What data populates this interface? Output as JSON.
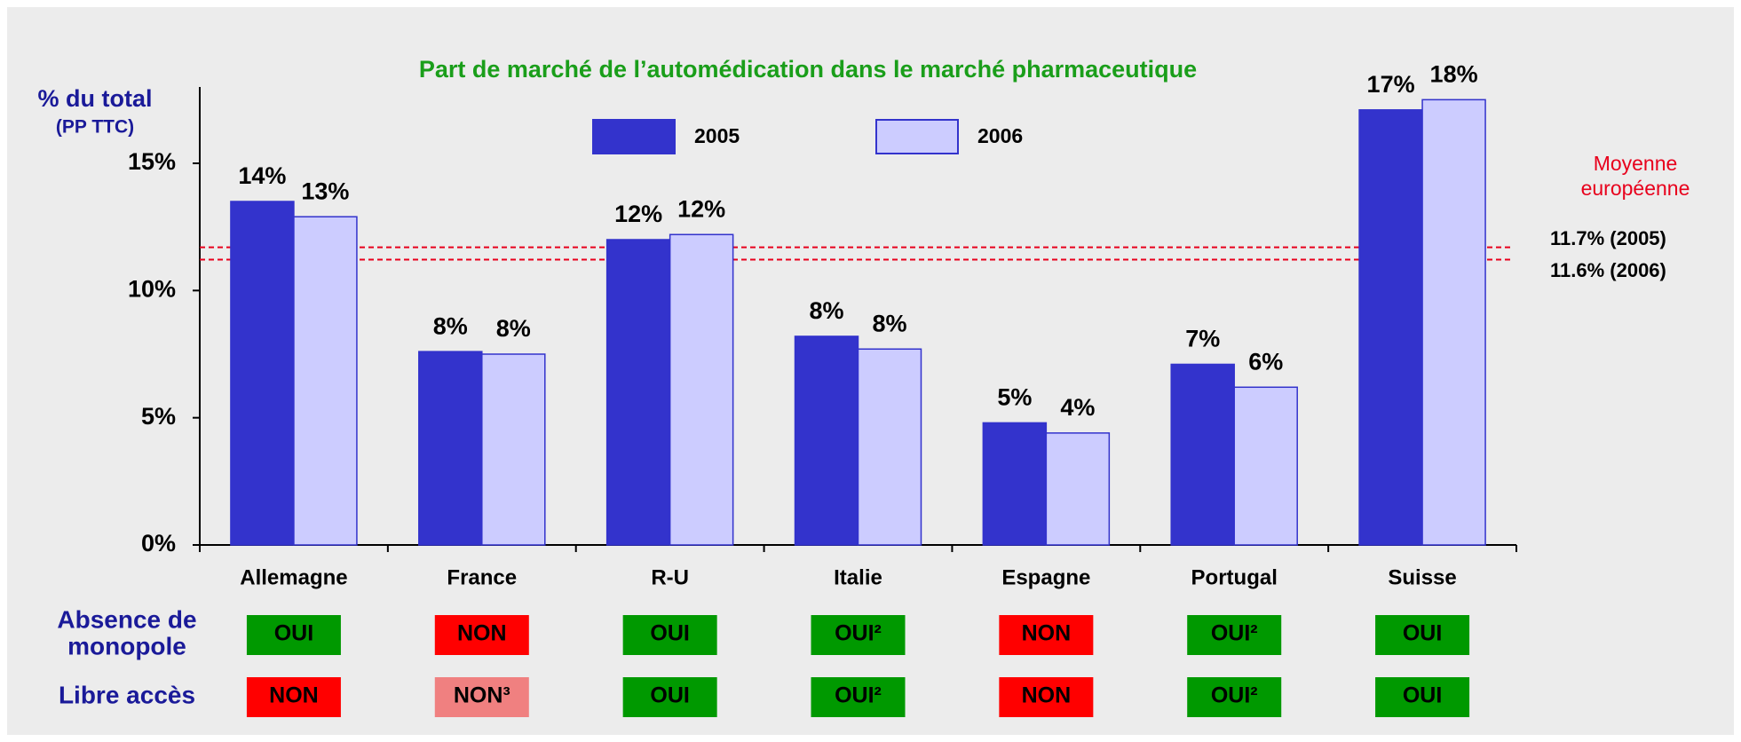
{
  "chart_data": {
    "type": "bar",
    "title": "Part de marché de l’automédication dans le marché pharmaceutique",
    "y_label": [
      "% du total",
      "(PP TTC)"
    ],
    "categories": [
      "Allemagne",
      "France",
      "R-U",
      "Italie",
      "Espagne",
      "Portugal",
      "Suisse"
    ],
    "series": [
      {
        "name": "2005",
        "color": "#3333cc",
        "values": [
          13.5,
          7.6,
          12.0,
          8.2,
          4.8,
          7.1,
          17.1
        ],
        "value_labels": [
          "14%",
          "8%",
          "12%",
          "8%",
          "5%",
          "7%",
          "17%"
        ]
      },
      {
        "name": "2006",
        "color": "#ccccff",
        "values": [
          12.9,
          7.5,
          12.2,
          7.7,
          4.4,
          6.2,
          17.5
        ],
        "value_labels": [
          "13%",
          "8%",
          "12%",
          "8%",
          "4%",
          "6%",
          "18%"
        ]
      }
    ],
    "ylim": [
      0,
      18
    ],
    "yticks": [
      {
        "value": 0,
        "label": "0%"
      },
      {
        "value": 5,
        "label": "5%"
      },
      {
        "value": 10,
        "label": "10%"
      },
      {
        "value": 15,
        "label": "15%"
      }
    ],
    "reference_title": [
      "Moyenne",
      "européenne"
    ],
    "reference_lines": [
      {
        "value": 11.7,
        "label": "11.7% (2005)"
      },
      {
        "value": 11.6,
        "label": "11.6% (2006)"
      }
    ],
    "reference_color": "#e8001c",
    "table": {
      "row_labels": [
        [
          "Absence de",
          "monopole"
        ],
        [
          "Libre accès"
        ]
      ],
      "rows": [
        [
          {
            "text": "OUI",
            "color": "#009900"
          },
          {
            "text": "NON",
            "color": "#ff0000"
          },
          {
            "text": "OUI",
            "color": "#009900"
          },
          {
            "text": "OUI²",
            "color": "#009900"
          },
          {
            "text": "NON",
            "color": "#ff0000"
          },
          {
            "text": "OUI²",
            "color": "#009900"
          },
          {
            "text": "OUI",
            "color": "#009900"
          }
        ],
        [
          {
            "text": "NON",
            "color": "#ff0000"
          },
          {
            "text": "NON³",
            "color": "#f08080"
          },
          {
            "text": "OUI",
            "color": "#009900"
          },
          {
            "text": "OUI²",
            "color": "#009900"
          },
          {
            "text": "NON",
            "color": "#ff0000"
          },
          {
            "text": "OUI²",
            "color": "#009900"
          },
          {
            "text": "OUI",
            "color": "#009900"
          }
        ]
      ]
    }
  }
}
